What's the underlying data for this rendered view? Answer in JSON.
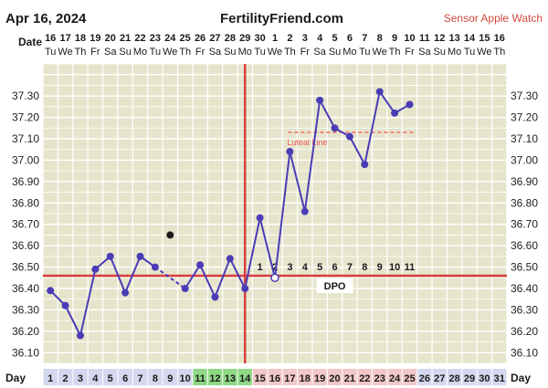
{
  "header": {
    "date": "Apr 16, 2024",
    "site": "FertilityFriend.com",
    "sensor": "Sensor Apple Watch"
  },
  "row_labels": {
    "date": "Date",
    "day": "Day",
    "dpo": "DPO"
  },
  "colors": {
    "background": "#e6e5cc",
    "grid": "#ffffff",
    "line": "#4a3cb5",
    "point": "#4a3cb5",
    "coverline": "#d83f3f",
    "ovulation_line": "#d83f3f",
    "luteal_line": "#ef7b7b",
    "luteal_text": "#f05a5a",
    "temp_axis_text": "#222222",
    "day_cell": "#d4d8ee",
    "day_cell_green": "#8ed886",
    "day_cell_pink": "#f1c7c7"
  },
  "chart_data": {
    "type": "line",
    "title": "",
    "xlabel": "Day",
    "ylabel": "",
    "ylim": [
      36.05,
      37.45
    ],
    "yticks": [
      "36.10",
      "36.20",
      "36.30",
      "36.40",
      "36.50",
      "36.60",
      "36.70",
      "36.80",
      "36.90",
      "37.00",
      "37.10",
      "37.20",
      "37.30"
    ],
    "date_numbers": [
      "16",
      "17",
      "18",
      "19",
      "20",
      "21",
      "22",
      "23",
      "24",
      "25",
      "26",
      "27",
      "28",
      "29",
      "30",
      "1",
      "2",
      "3",
      "4",
      "5",
      "6",
      "7",
      "8",
      "9",
      "10",
      "11",
      "12",
      "13",
      "14",
      "15",
      "16"
    ],
    "weekdays": [
      "Tu",
      "We",
      "Th",
      "Fr",
      "Sa",
      "Su",
      "Mo",
      "Tu",
      "We",
      "Th",
      "Fr",
      "Sa",
      "Su",
      "Mo",
      "Tu",
      "We",
      "Th",
      "Fr",
      "Sa",
      "Su",
      "Mo",
      "Tu",
      "We",
      "Th",
      "Fr",
      "Sa",
      "Su",
      "Mo",
      "Tu",
      "We",
      "Th"
    ],
    "days": [
      "1",
      "2",
      "3",
      "4",
      "5",
      "6",
      "7",
      "8",
      "9",
      "10",
      "11",
      "12",
      "13",
      "14",
      "15",
      "16",
      "17",
      "18",
      "19",
      "20",
      "21",
      "22",
      "23",
      "24",
      "25",
      "26",
      "27",
      "28",
      "29",
      "30",
      "31"
    ],
    "green_days": [
      11,
      12,
      13,
      14
    ],
    "pink_days": [
      15,
      16,
      17,
      18,
      19,
      20,
      21,
      22,
      23,
      24,
      25
    ],
    "temperatures": [
      {
        "day": 1,
        "value": 36.39
      },
      {
        "day": 2,
        "value": 36.32
      },
      {
        "day": 3,
        "value": 36.18
      },
      {
        "day": 4,
        "value": 36.49
      },
      {
        "day": 5,
        "value": 36.55
      },
      {
        "day": 6,
        "value": 36.38
      },
      {
        "day": 7,
        "value": 36.55
      },
      {
        "day": 8,
        "value": 36.5
      },
      {
        "day": 10,
        "value": 36.4
      },
      {
        "day": 11,
        "value": 36.51
      },
      {
        "day": 12,
        "value": 36.36
      },
      {
        "day": 13,
        "value": 36.54
      },
      {
        "day": 14,
        "value": 36.4
      },
      {
        "day": 15,
        "value": 36.73
      },
      {
        "day": 16,
        "value": 36.45,
        "hollow": true
      },
      {
        "day": 17,
        "value": 37.04
      },
      {
        "day": 18,
        "value": 36.76
      },
      {
        "day": 19,
        "value": 37.28
      },
      {
        "day": 20,
        "value": 37.15
      },
      {
        "day": 21,
        "value": 37.11
      },
      {
        "day": 22,
        "value": 36.98
      },
      {
        "day": 23,
        "value": 37.32
      },
      {
        "day": 24,
        "value": 37.22
      },
      {
        "day": 25,
        "value": 37.26
      }
    ],
    "dashed_segments": [
      [
        8,
        10
      ]
    ],
    "outlier": {
      "day": 9,
      "value": 36.65
    },
    "coverline": 36.46,
    "ovulation_day": 14,
    "dpo_labels": [
      "1",
      "2",
      "3",
      "4",
      "5",
      "6",
      "7",
      "8",
      "9",
      "10",
      "11"
    ],
    "dpo_start_day": 15,
    "luteal_line": {
      "label": "Luteal Line",
      "value": 37.13,
      "from_day": 17,
      "to_day": 25
    }
  }
}
